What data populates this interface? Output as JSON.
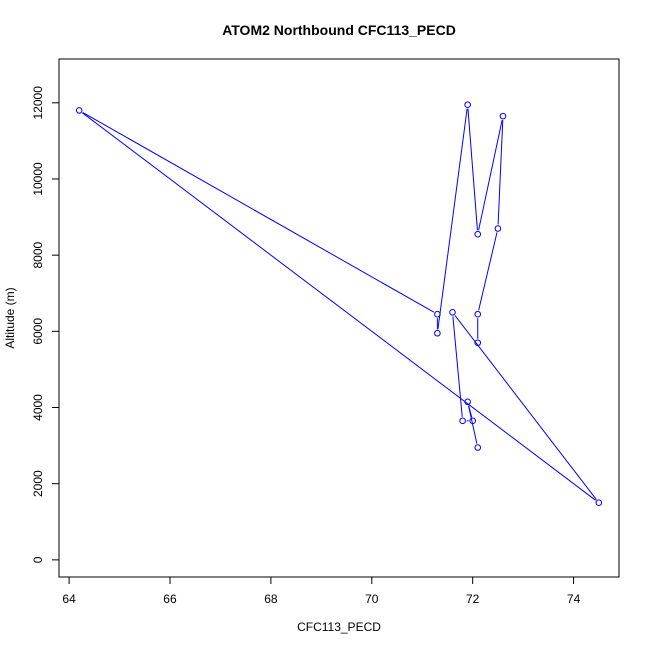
{
  "chart_data": {
    "type": "line",
    "title": "ATOM2 Northbound CFC113_PECD",
    "xlabel": "CFC113_PECD",
    "ylabel": "Altitude (m)",
    "xlim": [
      63.8,
      74.9
    ],
    "ylim": [
      -450,
      13150
    ],
    "xticks": [
      64,
      66,
      68,
      70,
      72,
      74
    ],
    "yticks": [
      0,
      2000,
      4000,
      6000,
      8000,
      10000,
      12000
    ],
    "grid": false,
    "legend": "none",
    "series": [
      {
        "color": "#0000ff",
        "marker": "open-circle",
        "x": [
          72.1,
          71.9,
          72.0,
          71.8,
          71.6,
          74.5,
          64.2,
          71.3,
          71.3,
          71.9,
          72.1,
          72.6,
          72.5,
          72.1,
          72.1
        ],
        "y": [
          2950,
          4150,
          3650,
          3650,
          6500,
          1500,
          11800,
          6450,
          5950,
          11950,
          8550,
          11650,
          8700,
          6450,
          5700
        ]
      }
    ]
  }
}
